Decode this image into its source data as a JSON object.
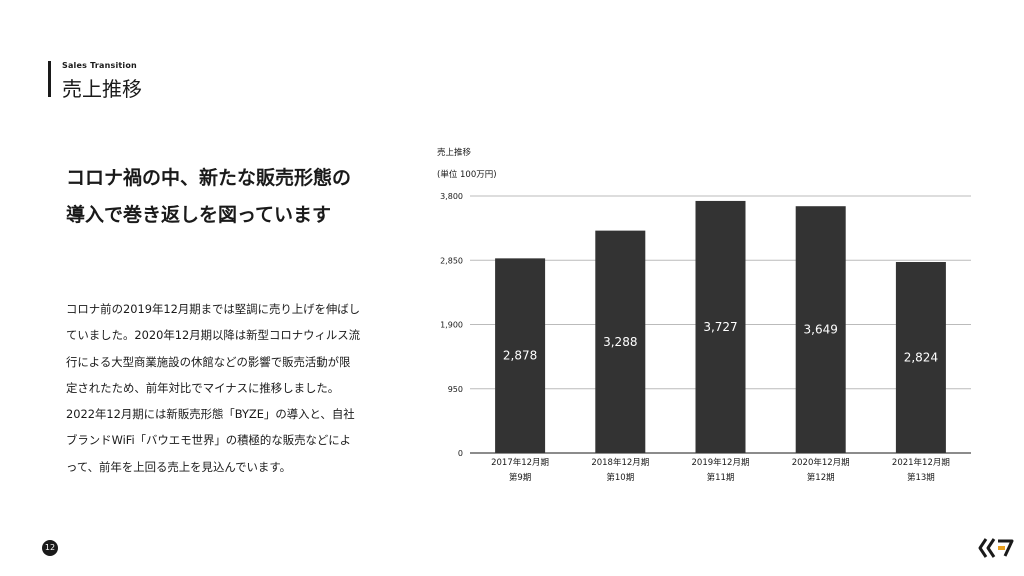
{
  "header": {
    "subtitle": "Sales Transition",
    "title": "売上推移"
  },
  "headline": {
    "lines": [
      "コロナ禍の中、新たな販売形態の",
      "導入で巻き返しを図っています"
    ]
  },
  "body": {
    "lines": [
      "コロナ前の2019年12月期までは堅調に売り上げを伸ばし",
      "ていました。2020年12月期以降は新型コロナウィルス流",
      "行による大型商業施設の休館などの影響で販売活動が限",
      "定されたため、前年対比でマイナスに推移しました。",
      "2022年12月期には新販売形態「BYZE」の導入と、自社",
      "ブランドWiFi「バウエモ世界」の積極的な販売などによ",
      "って、前年を上回る売上を見込んでいます。"
    ]
  },
  "chart_data": {
    "type": "bar",
    "title": "売上推移",
    "unit_label": "(単位 100万円)",
    "categories": [
      [
        "2017年12月期",
        "第9期"
      ],
      [
        "2018年12月期",
        "第10期"
      ],
      [
        "2019年12月期",
        "第11期"
      ],
      [
        "2020年12月期",
        "第12期"
      ],
      [
        "2021年12月期",
        "第13期"
      ]
    ],
    "values": [
      2878,
      3288,
      3727,
      3649,
      2824
    ],
    "value_labels": [
      "2,878",
      "3,288",
      "3,727",
      "3,649",
      "2,824"
    ],
    "yticks": [
      0,
      950,
      1900,
      2850,
      3800
    ],
    "ytick_labels": [
      "0",
      "950",
      "1,900",
      "2,850",
      "3,800"
    ],
    "ylim": [
      0,
      3800
    ],
    "grid": true,
    "bar_color": "#333333",
    "label_color": "#ffffff"
  },
  "footer": {
    "page_number": "12",
    "logo_icon": "company-logo-icon"
  }
}
